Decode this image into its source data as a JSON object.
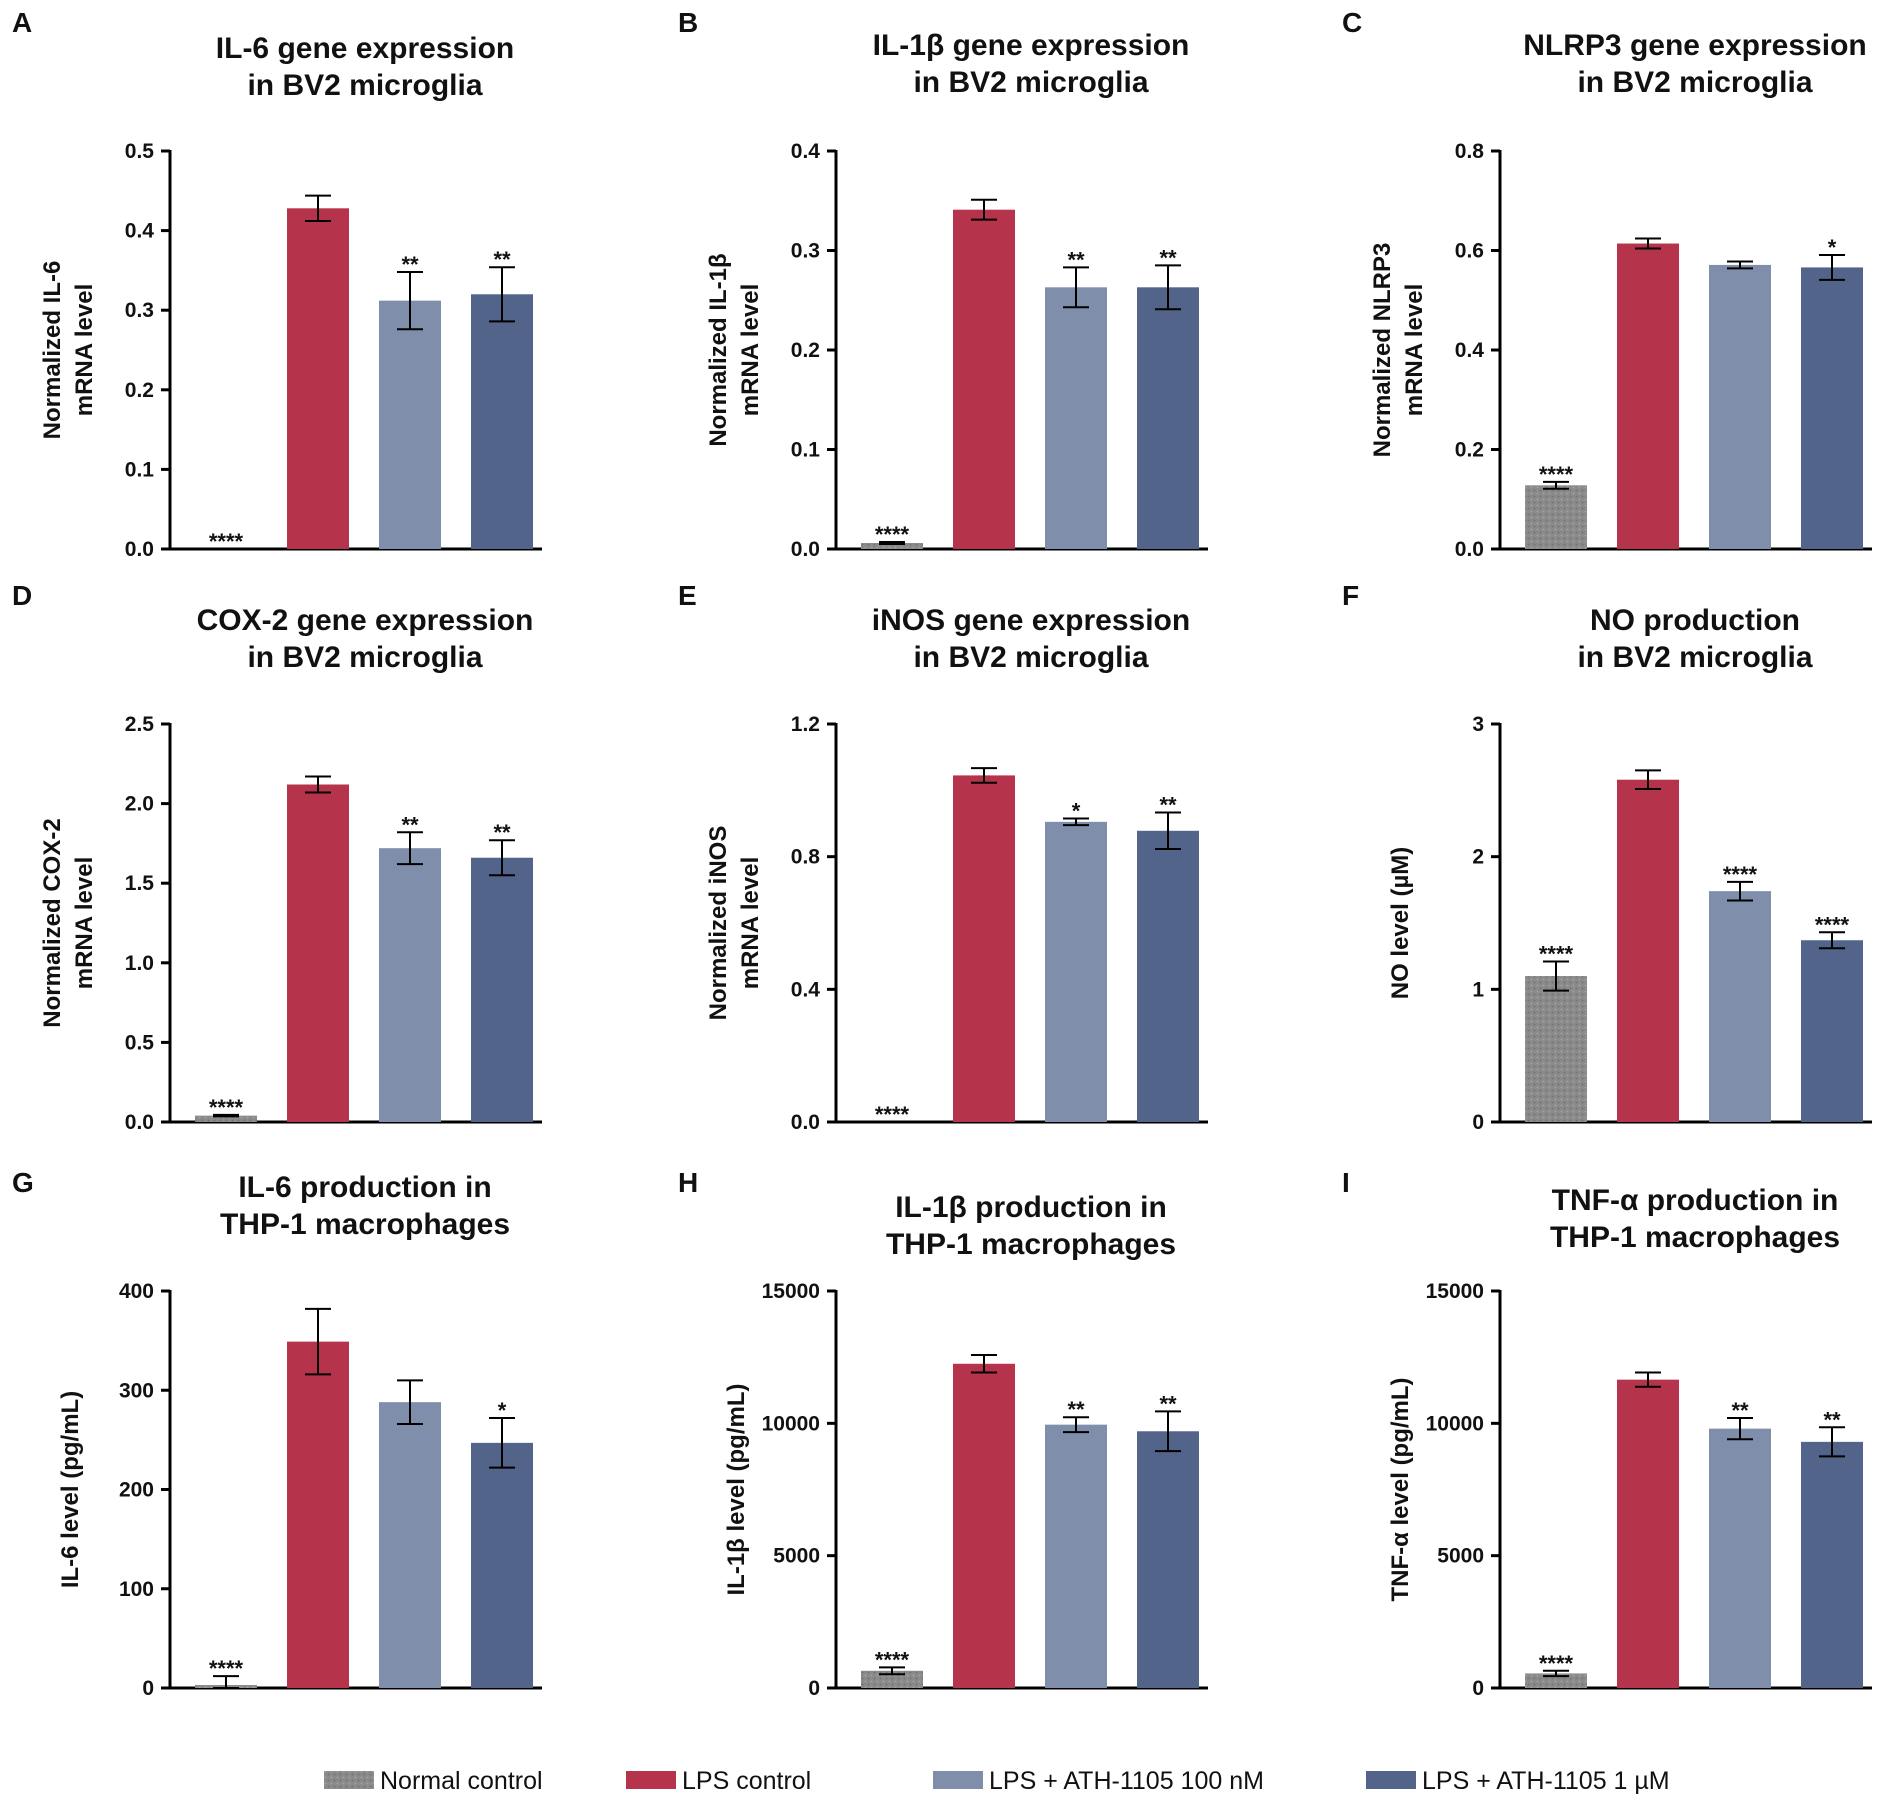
{
  "legend": [
    {
      "label": "Normal control",
      "color": "#8a8a8a"
    },
    {
      "label": "LPS control",
      "color": "#b5344b"
    },
    {
      "label": "LPS + ATH-1105 100 nM",
      "color": "#7f8fab"
    },
    {
      "label": "LPS + ATH-1105 1 µM",
      "color": "#52648a"
    }
  ],
  "chart_data": [
    {
      "type": "bar",
      "panel": "A",
      "title": [
        "IL-6 gene expression",
        "in BV2 microglia"
      ],
      "ylabel": [
        "Normalized IL-6",
        "mRNA level"
      ],
      "categories": [
        "Normal control",
        "LPS control",
        "LPS + ATH-1105 100 nM",
        "LPS + ATH-1105 1 µM"
      ],
      "values": [
        0.0,
        0.428,
        0.312,
        0.32
      ],
      "errors": [
        0.0,
        0.016,
        0.036,
        0.034
      ],
      "significance": [
        "****",
        "",
        "**",
        "**"
      ],
      "ylim": [
        0,
        0.5
      ],
      "yticks": [
        "0.0",
        "0.1",
        "0.2",
        "0.3",
        "0.4",
        "0.5"
      ]
    },
    {
      "type": "bar",
      "panel": "B",
      "title": [
        "IL-1β gene expression",
        "in  BV2 microglia"
      ],
      "ylabel": [
        "Normalized IL-1β",
        "mRNA level"
      ],
      "categories": [
        "Normal control",
        "LPS control",
        "LPS + ATH-1105 100 nM",
        "LPS + ATH-1105 1 µM"
      ],
      "values": [
        0.006,
        0.341,
        0.263,
        0.263
      ],
      "errors": [
        0.001,
        0.01,
        0.02,
        0.022
      ],
      "significance": [
        "****",
        "",
        "**",
        "**"
      ],
      "ylim": [
        0,
        0.4
      ],
      "yticks": [
        "0.0",
        "0.1",
        "0.2",
        "0.3",
        "0.4"
      ]
    },
    {
      "type": "bar",
      "panel": "C",
      "title": [
        "NLRP3 gene expression",
        "in BV2 microglia"
      ],
      "ylabel": [
        "Normalized NLRP3",
        "mRNA level"
      ],
      "categories": [
        "Normal control",
        "LPS control",
        "LPS + ATH-1105 100 nM",
        "LPS + ATH-1105 1 µM"
      ],
      "values": [
        0.128,
        0.614,
        0.571,
        0.566
      ],
      "errors": [
        0.007,
        0.01,
        0.007,
        0.025
      ],
      "significance": [
        "****",
        "",
        "",
        "*"
      ],
      "ylim": [
        0,
        0.8
      ],
      "yticks": [
        "0.0",
        "0.2",
        "0.4",
        "0.6",
        "0.8"
      ]
    },
    {
      "type": "bar",
      "panel": "D",
      "title": [
        "COX-2 gene expression",
        "in BV2 microglia"
      ],
      "ylabel": [
        "Normalized COX-2",
        "mRNA level"
      ],
      "categories": [
        "Normal control",
        "LPS control",
        "LPS + ATH-1105 100 nM",
        "LPS + ATH-1105 1 µM"
      ],
      "values": [
        0.04,
        2.12,
        1.72,
        1.66
      ],
      "errors": [
        0.005,
        0.05,
        0.1,
        0.11
      ],
      "significance": [
        "****",
        "",
        "**",
        "**"
      ],
      "ylim": [
        0,
        2.5
      ],
      "yticks": [
        "0.0",
        "0.5",
        "1.0",
        "1.5",
        "2.0",
        "2.5"
      ]
    },
    {
      "type": "bar",
      "panel": "E",
      "title": [
        "iNOS gene expression",
        "in BV2 microglia"
      ],
      "ylabel": [
        "Normalized iNOS",
        "mRNA level"
      ],
      "categories": [
        "Normal control",
        "LPS control",
        "LPS + ATH-1105 100 nM",
        "LPS + ATH-1105 1 µM"
      ],
      "values": [
        0.0,
        1.045,
        0.905,
        0.878
      ],
      "errors": [
        0.0,
        0.022,
        0.01,
        0.055
      ],
      "significance": [
        "****",
        "",
        "*",
        "**"
      ],
      "ylim": [
        0,
        1.2
      ],
      "yticks": [
        "0.0",
        "0.4",
        "0.8",
        "1.2"
      ]
    },
    {
      "type": "bar",
      "panel": "F",
      "title": [
        "NO production",
        "in BV2 microglia"
      ],
      "ylabel": [
        "NO level (µM)"
      ],
      "categories": [
        "Normal control",
        "LPS control",
        "LPS + ATH-1105 100 nM",
        "LPS + ATH-1105 1 µM"
      ],
      "values": [
        1.1,
        2.58,
        1.74,
        1.37
      ],
      "errors": [
        0.11,
        0.07,
        0.07,
        0.06
      ],
      "significance": [
        "****",
        "",
        "****",
        "****"
      ],
      "ylim": [
        0,
        3
      ],
      "yticks": [
        "0",
        "1",
        "2",
        "3"
      ]
    },
    {
      "type": "bar",
      "panel": "G",
      "title": [
        "IL-6 production in",
        "THP-1 macrophages"
      ],
      "ylabel": [
        "IL-6 level (pg/mL)"
      ],
      "categories": [
        "Normal control",
        "LPS control",
        "LPS + ATH-1105 100 nM",
        "LPS + ATH-1105 1 µM"
      ],
      "values": [
        3,
        349,
        288,
        247
      ],
      "errors": [
        9,
        33,
        22,
        25
      ],
      "significance": [
        "****",
        "",
        "",
        "*"
      ],
      "ylim": [
        0,
        400
      ],
      "yticks": [
        "0",
        "100",
        "200",
        "300",
        "400"
      ]
    },
    {
      "type": "bar",
      "panel": "H",
      "title": [
        "IL-1β production in",
        "THP-1 macrophages"
      ],
      "ylabel": [
        "IL-1β level (pg/mL)"
      ],
      "categories": [
        "Normal control",
        "LPS control",
        "LPS + ATH-1105 100 nM",
        "LPS + ATH-1105 1 µM"
      ],
      "values": [
        650,
        12250,
        9950,
        9700
      ],
      "errors": [
        130,
        330,
        280,
        750
      ],
      "significance": [
        "****",
        "",
        "**",
        "**"
      ],
      "ylim": [
        0,
        15000
      ],
      "yticks": [
        "0",
        "5000",
        "10000",
        "15000"
      ]
    },
    {
      "type": "bar",
      "panel": "I",
      "title": [
        "TNF-α production in",
        "THP-1 macrophages"
      ],
      "ylabel": [
        "TNF-α level (pg/mL)"
      ],
      "categories": [
        "Normal control",
        "LPS control",
        "LPS + ATH-1105 100 nM",
        "LPS + ATH-1105 1 µM"
      ],
      "values": [
        550,
        11650,
        9800,
        9300
      ],
      "errors": [
        100,
        270,
        400,
        550
      ],
      "significance": [
        "****",
        "",
        "**",
        "**"
      ],
      "ylim": [
        0,
        15000
      ],
      "yticks": [
        "0",
        "5000",
        "10000",
        "15000"
      ]
    }
  ]
}
